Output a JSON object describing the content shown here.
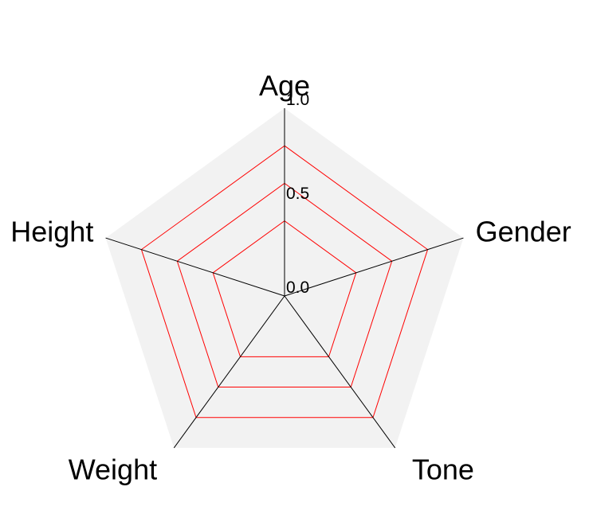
{
  "chart_data": {
    "type": "radar",
    "title": "",
    "axes": [
      "Age",
      "Gender",
      "Tone",
      "Weight",
      "Height"
    ],
    "rlim": [
      0,
      1.0
    ],
    "tick_labels": [
      "0.0",
      "0.5",
      "1.0"
    ],
    "grid": false,
    "series": [
      {
        "values": [
          0.8,
          0.8,
          0.8,
          0.8,
          0.8
        ]
      },
      {
        "values": [
          0.6,
          0.6,
          0.6,
          0.6,
          0.6
        ]
      },
      {
        "values": [
          0.4,
          0.4,
          0.4,
          0.4,
          0.4
        ]
      }
    ],
    "colors": {
      "background": "#f2f2f2",
      "axis": "#000000",
      "series": "#ff0000"
    }
  }
}
